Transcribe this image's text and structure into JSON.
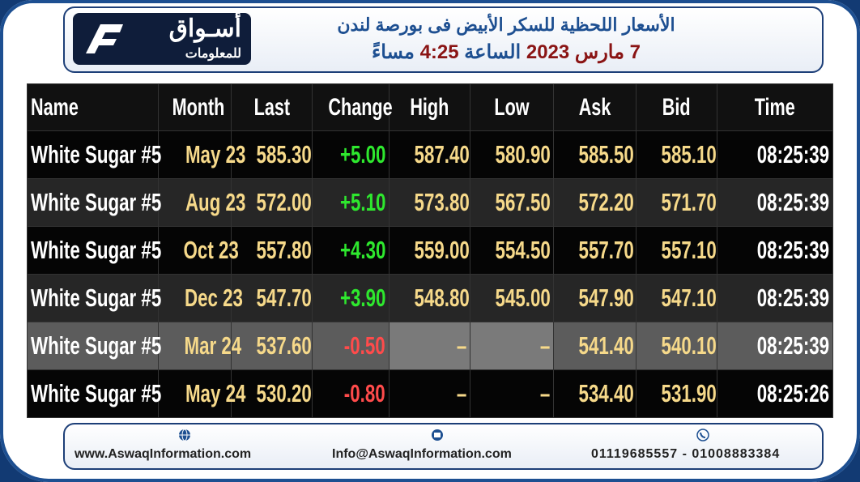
{
  "header": {
    "logo_name": "أسـواق",
    "logo_sub": "للمعلومات",
    "title": "الأسعار اللحظية للسكر الأبيض فى بورصة لندن",
    "subtitle": [
      "7 مارس 2023",
      "الساعة",
      "4:25",
      "مساءً"
    ]
  },
  "table": {
    "columns": [
      "Name",
      "Month",
      "Last",
      "Change",
      "High",
      "Low",
      "Ask",
      "Bid",
      "Time"
    ],
    "rows": [
      [
        "White Sugar #5",
        "May 23",
        "585.30",
        "+5.00",
        "587.40",
        "580.90",
        "585.50",
        "585.10",
        "08:25:39"
      ],
      [
        "White Sugar #5",
        "Aug 23",
        "572.00",
        "+5.10",
        "573.80",
        "567.50",
        "572.20",
        "571.70",
        "08:25:39"
      ],
      [
        "White Sugar #5",
        "Oct 23",
        "557.80",
        "+4.30",
        "559.00",
        "554.50",
        "557.70",
        "557.10",
        "08:25:39"
      ],
      [
        "White Sugar #5",
        "Dec 23",
        "547.70",
        "+3.90",
        "548.80",
        "545.00",
        "547.90",
        "547.10",
        "08:25:39"
      ],
      [
        "White Sugar #5",
        "Mar 24",
        "537.60",
        "-0.50",
        "–",
        "–",
        "541.40",
        "540.10",
        "08:25:39"
      ],
      [
        "White Sugar #5",
        "May 24",
        "530.20",
        "-0.80",
        "–",
        "–",
        "534.40",
        "531.90",
        "08:25:26"
      ]
    ]
  },
  "footer": {
    "website": "www.AswaqInformation.com",
    "email": "Info@AswaqInformation.com",
    "phones": "01119685557 - 01008883384"
  }
}
